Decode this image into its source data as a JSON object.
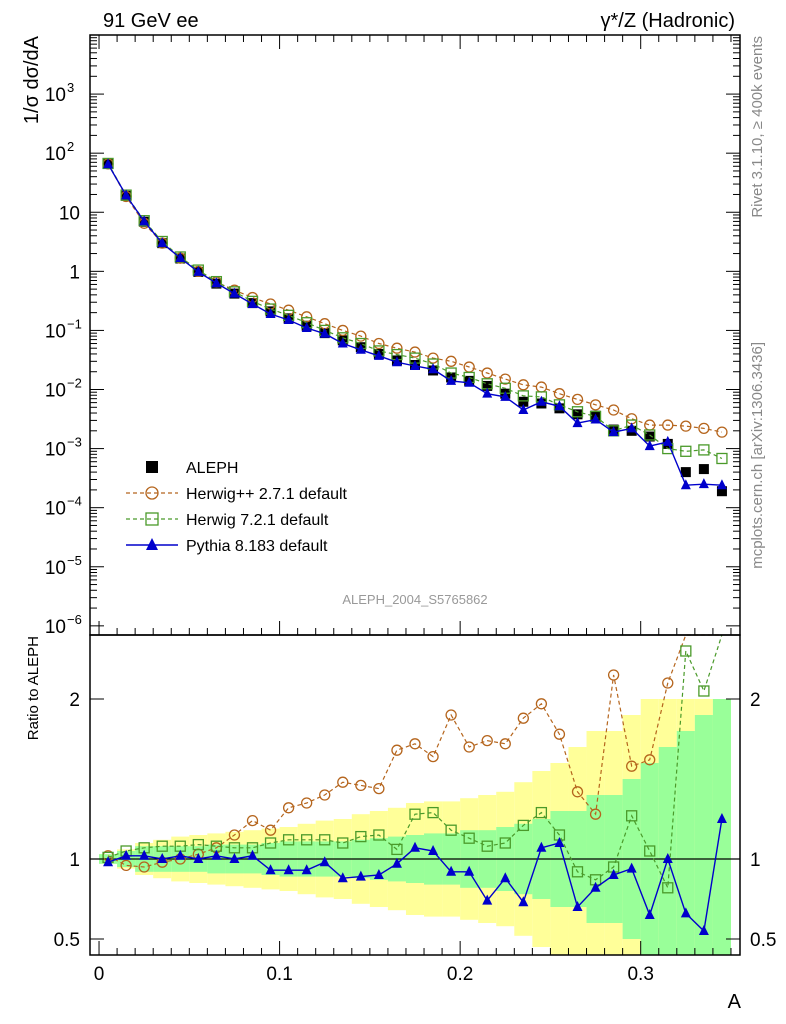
{
  "header": {
    "left": "91 GeV ee",
    "right": "γ*/Z (Hadronic)"
  },
  "side_text": {
    "rivet": "Rivet 3.1.10, ≥ 400k events",
    "mcplots": "mcplots.cern.ch [arXiv:1306.3436]"
  },
  "watermark": "ALEPH_2004_S5765862",
  "chart_data": [
    {
      "type": "scatter",
      "panel": "main",
      "yscale": "log",
      "ylabel": "1/σ  dσ/dA",
      "xlim": [
        -0.005,
        0.355
      ],
      "ylim": [
        7e-07,
        10000.0
      ],
      "y_ticks": [
        {
          "v": 1e-06,
          "base": "10",
          "exp": "−6"
        },
        {
          "v": 1e-05,
          "base": "10",
          "exp": "−5"
        },
        {
          "v": 0.0001,
          "base": "10",
          "exp": "−4"
        },
        {
          "v": 0.001,
          "base": "10",
          "exp": "−3"
        },
        {
          "v": 0.01,
          "base": "10",
          "exp": "−2"
        },
        {
          "v": 0.1,
          "base": "10",
          "exp": "−1"
        },
        {
          "v": 1,
          "base": "1",
          "exp": ""
        },
        {
          "v": 10,
          "base": "10",
          "exp": ""
        },
        {
          "v": 100,
          "base": "10",
          "exp": "2"
        },
        {
          "v": 1000,
          "base": "10",
          "exp": "3"
        }
      ],
      "x": [
        0.005,
        0.015,
        0.025,
        0.035,
        0.045,
        0.055,
        0.065,
        0.075,
        0.085,
        0.095,
        0.105,
        0.115,
        0.125,
        0.135,
        0.145,
        0.155,
        0.165,
        0.175,
        0.185,
        0.195,
        0.205,
        0.215,
        0.225,
        0.235,
        0.245,
        0.255,
        0.265,
        0.275,
        0.285,
        0.295,
        0.305,
        0.315,
        0.325,
        0.335,
        0.345
      ],
      "series": [
        {
          "name": "ALEPH",
          "color": "#000000",
          "marker": "square-filled",
          "values": [
            66,
            19,
            6.9,
            3.0,
            1.65,
            0.98,
            0.62,
            0.42,
            0.29,
            0.21,
            0.16,
            0.12,
            0.09,
            0.068,
            0.052,
            0.04,
            0.031,
            0.026,
            0.021,
            0.016,
            0.014,
            0.0115,
            0.0085,
            0.0062,
            0.0058,
            0.0048,
            0.0038,
            0.0036,
            0.0021,
            0.002,
            0.0016,
            0.0012,
            0.0004,
            0.00045,
            0.00019
          ]
        },
        {
          "name": "Herwig++ 2.7.1 default",
          "color": "#b5651d",
          "marker": "circle-open",
          "dash": true,
          "values": [
            66,
            18.5,
            6.5,
            3.0,
            1.67,
            1.0,
            0.66,
            0.48,
            0.36,
            0.28,
            0.22,
            0.17,
            0.13,
            0.1,
            0.08,
            0.06,
            0.05,
            0.043,
            0.034,
            0.03,
            0.024,
            0.019,
            0.015,
            0.012,
            0.011,
            0.0085,
            0.0068,
            0.0055,
            0.0045,
            0.0032,
            0.0025,
            0.0025,
            0.0024,
            0.0022,
            0.0019
          ]
        },
        {
          "name": "Herwig 7.2.1 default",
          "color": "#4a9a2a",
          "marker": "square-open",
          "dash": true,
          "values": [
            67,
            19.5,
            7.2,
            3.2,
            1.75,
            1.05,
            0.67,
            0.45,
            0.31,
            0.23,
            0.18,
            0.135,
            0.1,
            0.075,
            0.06,
            0.045,
            0.039,
            0.034,
            0.027,
            0.019,
            0.016,
            0.0125,
            0.0105,
            0.0078,
            0.0075,
            0.0055,
            0.0042,
            0.0035,
            0.002,
            0.0025,
            0.0017,
            0.001,
            0.0009,
            0.00095,
            0.00068
          ]
        },
        {
          "name": "Pythia 8.183 default",
          "color": "#0000cc",
          "marker": "triangle-filled",
          "values": [
            65,
            19.3,
            7.0,
            3.0,
            1.68,
            0.98,
            0.63,
            0.42,
            0.28,
            0.19,
            0.15,
            0.11,
            0.088,
            0.06,
            0.047,
            0.037,
            0.029,
            0.025,
            0.022,
            0.014,
            0.013,
            0.0085,
            0.0075,
            0.0045,
            0.0062,
            0.0052,
            0.0027,
            0.0031,
            0.0019,
            0.0022,
            0.0011,
            0.0013,
            0.00024,
            0.00025,
            0.00024
          ]
        }
      ],
      "legend": {
        "position": "lower-left"
      }
    },
    {
      "type": "line",
      "panel": "ratio",
      "ylabel": "Ratio to ALEPH",
      "xlabel": "A",
      "xlim": [
        -0.005,
        0.355
      ],
      "ylim": [
        0.4,
        2.4
      ],
      "y_ticks": [
        "0.5",
        "1",
        "2"
      ],
      "x_ticks": [
        "0",
        "0.1",
        "0.2",
        "0.3"
      ],
      "reference": 1,
      "band_green": [
        0.03,
        0.05,
        0.08,
        0.08,
        0.08,
        0.08,
        0.09,
        0.09,
        0.09,
        0.1,
        0.11,
        0.11,
        0.11,
        0.11,
        0.12,
        0.13,
        0.14,
        0.15,
        0.16,
        0.16,
        0.18,
        0.18,
        0.2,
        0.22,
        0.25,
        0.3,
        0.3,
        0.4,
        0.4,
        0.5,
        0.6,
        0.7,
        0.8,
        0.9,
        1.0
      ],
      "band_yellow": [
        0.03,
        0.06,
        0.1,
        0.12,
        0.14,
        0.15,
        0.16,
        0.17,
        0.18,
        0.19,
        0.2,
        0.22,
        0.24,
        0.25,
        0.28,
        0.3,
        0.32,
        0.35,
        0.36,
        0.36,
        0.38,
        0.4,
        0.42,
        0.48,
        0.55,
        0.6,
        0.7,
        0.8,
        0.8,
        0.9,
        1.0,
        1.0,
        1.0,
        1.0,
        1.0
      ],
      "series": [
        {
          "name": "Herwig++ 2.7.1 default",
          "color": "#b5651d",
          "values": [
            1.02,
            0.96,
            0.95,
            0.98,
            1.0,
            1.03,
            1.07,
            1.15,
            1.24,
            1.18,
            1.32,
            1.35,
            1.4,
            1.48,
            1.46,
            1.44,
            1.68,
            1.72,
            1.64,
            1.9,
            1.7,
            1.74,
            1.72,
            1.88,
            1.97,
            1.78,
            1.42,
            1.28,
            2.15,
            1.58,
            1.62,
            2.1,
            2.4,
            2.4,
            2.4
          ]
        },
        {
          "name": "Herwig 7.2.1 default",
          "color": "#4a9a2a",
          "values": [
            1.01,
            1.05,
            1.07,
            1.08,
            1.08,
            1.09,
            1.08,
            1.07,
            1.07,
            1.1,
            1.12,
            1.12,
            1.12,
            1.1,
            1.14,
            1.15,
            1.06,
            1.28,
            1.29,
            1.18,
            1.13,
            1.08,
            1.1,
            1.21,
            1.29,
            1.15,
            0.92,
            0.87,
            0.95,
            1.27,
            1.05,
            0.82,
            2.3,
            2.05,
            2.4
          ]
        },
        {
          "name": "Pythia 8.183 default",
          "color": "#0000cc",
          "values": [
            0.98,
            1.02,
            1.02,
            1.0,
            1.02,
            1.0,
            1.02,
            1.0,
            1.02,
            0.93,
            0.93,
            0.93,
            0.98,
            0.88,
            0.89,
            0.9,
            0.97,
            1.07,
            1.05,
            0.92,
            0.92,
            0.74,
            0.88,
            0.73,
            1.07,
            1.1,
            0.7,
            0.82,
            0.9,
            0.94,
            0.65,
            1.0,
            0.66,
            0.55,
            1.25
          ]
        }
      ]
    }
  ]
}
